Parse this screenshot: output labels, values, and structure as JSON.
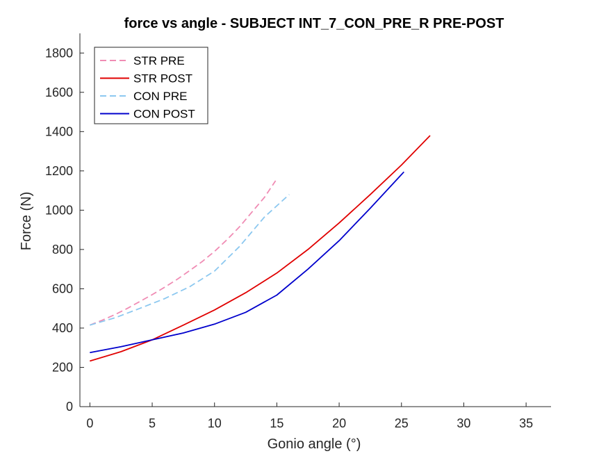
{
  "chart_data": {
    "type": "line",
    "title": "force vs angle - SUBJECT INT_7_CON_PRE_R PRE-POST",
    "xlabel": "Gonio angle (°)",
    "ylabel": "Force (N)",
    "xlim": [
      -0.8,
      37
    ],
    "ylim": [
      0,
      1900
    ],
    "xticks": [
      0,
      5,
      10,
      15,
      20,
      25,
      30,
      35
    ],
    "yticks": [
      0,
      200,
      400,
      600,
      800,
      1000,
      1200,
      1400,
      1600,
      1800
    ],
    "grid": false,
    "legend_position": "top-left",
    "series": [
      {
        "name": "STR PRE",
        "color": "#f08cb4",
        "dash": "dashed",
        "x": [
          0,
          1,
          2,
          3,
          4,
          5,
          6,
          7,
          8,
          9,
          10,
          11,
          12,
          13,
          14,
          14.9
        ],
        "y": [
          415,
          440,
          468,
          500,
          535,
          570,
          608,
          648,
          692,
          738,
          790,
          850,
          915,
          990,
          1065,
          1150
        ]
      },
      {
        "name": "STR POST",
        "color": "#e00000",
        "dash": "solid",
        "x": [
          0,
          2.5,
          5,
          7.5,
          10,
          12.5,
          15,
          17.5,
          20,
          22.5,
          25,
          27.3
        ],
        "y": [
          232,
          280,
          340,
          415,
          492,
          580,
          680,
          800,
          935,
          1080,
          1230,
          1380
        ]
      },
      {
        "name": "CON PRE",
        "color": "#8cc8f0",
        "dash": "dashed",
        "x": [
          0,
          2,
          4,
          6,
          8,
          10,
          12,
          14,
          16
        ],
        "y": [
          415,
          452,
          500,
          550,
          610,
          690,
          815,
          965,
          1080
        ]
      },
      {
        "name": "CON POST",
        "color": "#0000cc",
        "dash": "solid",
        "x": [
          0,
          2.5,
          5,
          7.5,
          10,
          12.5,
          15,
          17.5,
          20,
          22.5,
          25.2
        ],
        "y": [
          275,
          305,
          340,
          375,
          420,
          480,
          568,
          700,
          845,
          1010,
          1195
        ]
      }
    ]
  }
}
